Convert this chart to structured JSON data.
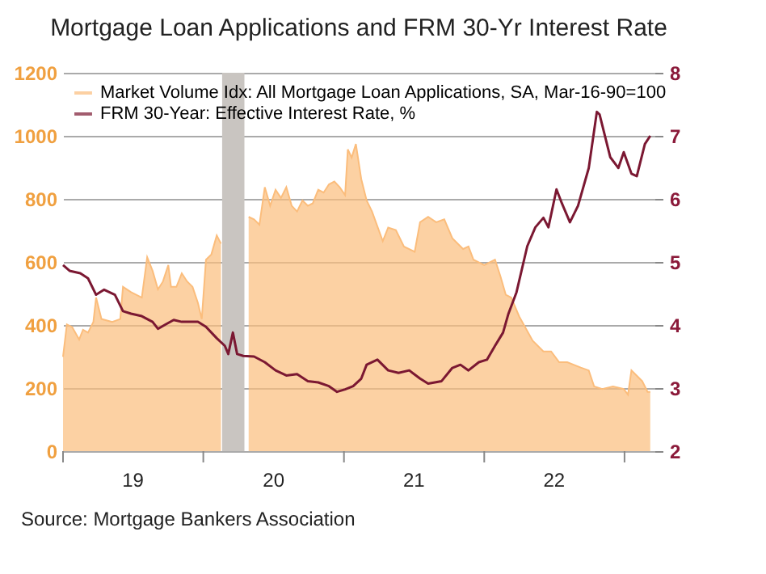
{
  "chart_data": {
    "type": "area",
    "title": "Mortgage Loan Applications and FRM 30-Yr Interest Rate",
    "series": [
      {
        "name": "Market Volume Idx: All Mortgage Loan Applications, SA, Mar-16-90=100",
        "color": "#fbbd7c",
        "x": [
          "2019-01-01",
          "2019-01-11",
          "2019-01-25",
          "2019-02-12",
          "2019-02-22",
          "2019-03-07",
          "2019-03-21",
          "2019-03-28",
          "2019-04-11",
          "2019-05-09",
          "2019-05-30",
          "2019-06-06",
          "2019-06-27",
          "2019-07-25",
          "2019-08-08",
          "2019-08-22",
          "2019-09-05",
          "2019-09-18",
          "2019-10-02",
          "2019-10-09",
          "2019-10-23",
          "2019-11-06",
          "2019-11-20",
          "2019-12-04",
          "2019-12-18",
          "2019-12-28",
          "2020-01-08",
          "2020-01-22",
          "2020-02-05",
          "2020-02-16",
          "2020-02-26",
          "2020-03-18",
          "2020-04-01",
          "2020-04-14",
          "2020-04-28",
          "2020-05-12",
          "2020-05-26",
          "2020-06-09",
          "2020-06-23",
          "2020-07-07",
          "2020-07-21",
          "2020-08-04",
          "2020-08-18",
          "2020-09-01",
          "2020-09-15",
          "2020-09-29",
          "2020-10-12",
          "2020-10-26",
          "2020-11-09",
          "2020-11-23",
          "2020-12-07",
          "2020-12-21",
          "2021-01-04",
          "2021-01-11",
          "2021-01-21",
          "2021-02-01",
          "2021-02-15",
          "2021-03-01",
          "2021-03-15",
          "2021-04-12",
          "2021-04-26",
          "2021-05-16",
          "2021-06-06",
          "2021-07-04",
          "2021-07-18",
          "2021-08-08",
          "2021-08-29",
          "2021-09-19",
          "2021-10-10",
          "2021-11-07",
          "2021-11-21",
          "2021-12-04",
          "2022-01-01",
          "2022-01-29",
          "2022-02-12",
          "2022-02-26",
          "2022-03-12",
          "2022-04-02",
          "2022-05-07",
          "2022-06-04",
          "2022-06-24",
          "2022-07-15",
          "2022-08-05",
          "2022-09-09",
          "2022-09-30",
          "2022-10-14",
          "2022-11-04",
          "2022-12-02",
          "2022-12-30",
          "2023-01-10",
          "2023-01-19",
          "2023-02-02",
          "2023-02-16",
          "2023-03-02",
          "2023-03-09"
        ],
        "values": [
          299,
          402,
          393,
          354,
          385,
          376,
          410,
          487,
          419,
          410,
          419,
          521,
          504,
          487,
          615,
          572,
          513,
          538,
          590,
          521,
          521,
          564,
          538,
          521,
          470,
          419,
          607,
          624,
          684,
          658,
          null,
          null,
          null,
          null,
          743,
          735,
          718,
          837,
          778,
          829,
          803,
          837,
          778,
          760,
          795,
          778,
          786,
          829,
          820,
          846,
          855,
          837,
          812,
          957,
          931,
          974,
          863,
          795,
          760,
          666,
          709,
          701,
          649,
          632,
          726,
          743,
          726,
          735,
          675,
          641,
          649,
          607,
          590,
          607,
          555,
          496,
          487,
          427,
          350,
          316,
          316,
          282,
          282,
          265,
          256,
          205,
          197,
          205,
          197,
          179,
          256,
          239,
          222,
          188,
          188
        ]
      },
      {
        "name": "FRM 30-Year: Effective Interest Rate, %",
        "type": "line",
        "axis": "y2",
        "color": "#7b1832",
        "x": [
          "2019-01-01",
          "2019-01-18",
          "2019-02-15",
          "2019-03-07",
          "2019-03-28",
          "2019-04-18",
          "2019-05-16",
          "2019-06-06",
          "2019-06-27",
          "2019-07-25",
          "2019-08-22",
          "2019-09-05",
          "2019-09-25",
          "2019-10-16",
          "2019-11-06",
          "2019-11-27",
          "2019-12-18",
          "2020-01-08",
          "2020-02-05",
          "2020-02-26",
          "2020-03-06",
          "2020-03-18",
          "2020-03-29",
          "2020-04-14",
          "2020-05-12",
          "2020-06-09",
          "2020-07-07",
          "2020-08-04",
          "2020-09-01",
          "2020-09-29",
          "2020-10-26",
          "2020-11-23",
          "2020-12-14",
          "2021-01-04",
          "2021-01-25",
          "2021-02-15",
          "2021-03-01",
          "2021-03-29",
          "2021-04-26",
          "2021-05-23",
          "2021-06-20",
          "2021-07-18",
          "2021-08-08",
          "2021-09-12",
          "2021-10-10",
          "2021-10-31",
          "2021-11-21",
          "2021-12-18",
          "2022-01-08",
          "2022-01-29",
          "2022-02-19",
          "2022-03-05",
          "2022-03-26",
          "2022-04-23",
          "2022-05-14",
          "2022-06-04",
          "2022-06-17",
          "2022-07-08",
          "2022-07-22",
          "2022-08-12",
          "2022-09-02",
          "2022-09-30",
          "2022-10-21",
          "2022-10-28",
          "2022-11-25",
          "2022-12-16",
          "2022-12-30",
          "2023-01-19",
          "2023-02-02",
          "2023-02-23",
          "2023-03-09"
        ],
        "values": [
          4.95,
          4.86,
          4.82,
          4.74,
          4.48,
          4.56,
          4.48,
          4.22,
          4.18,
          4.14,
          4.05,
          3.94,
          4.01,
          4.08,
          4.05,
          4.05,
          4.05,
          3.97,
          3.79,
          3.67,
          3.54,
          3.88,
          3.54,
          3.51,
          3.5,
          3.41,
          3.28,
          3.2,
          3.22,
          3.11,
          3.09,
          3.03,
          2.94,
          2.98,
          3.03,
          3.15,
          3.37,
          3.45,
          3.28,
          3.24,
          3.28,
          3.15,
          3.07,
          3.11,
          3.32,
          3.37,
          3.28,
          3.41,
          3.45,
          3.67,
          3.88,
          4.18,
          4.52,
          5.25,
          5.55,
          5.7,
          5.55,
          6.15,
          5.93,
          5.63,
          5.89,
          6.49,
          7.38,
          7.34,
          6.66,
          6.49,
          6.74,
          6.4,
          6.36,
          6.87,
          7.0
        ]
      }
    ],
    "xlim": [
      "2019-01-01",
      "2023-03-20"
    ],
    "xticks": [
      {
        "value": "2019-01-01",
        "label": null
      },
      {
        "value": "2019-07-02",
        "label": "19"
      },
      {
        "value": "2020-01-01",
        "label": null
      },
      {
        "value": "2020-07-02",
        "label": "20"
      },
      {
        "value": "2021-01-01",
        "label": null
      },
      {
        "value": "2021-07-02",
        "label": "21"
      },
      {
        "value": "2022-01-01",
        "label": null
      },
      {
        "value": "2022-07-02",
        "label": "22"
      },
      {
        "value": "2023-01-01",
        "label": null
      }
    ],
    "ylim": [
      0,
      1200
    ],
    "yticks": [
      0,
      200,
      400,
      600,
      800,
      1000,
      1200
    ],
    "y2lim": [
      2,
      8
    ],
    "y2ticks": [
      2,
      3,
      4,
      5,
      6,
      7,
      8
    ],
    "bands": [
      {
        "axis": "x",
        "from": "2020-02-19",
        "to": "2020-04-17",
        "color": "#c9c5c1"
      }
    ],
    "grid": "y",
    "legend": "top left",
    "annotations": [
      "Source:  Mortgage Bankers Association"
    ]
  }
}
